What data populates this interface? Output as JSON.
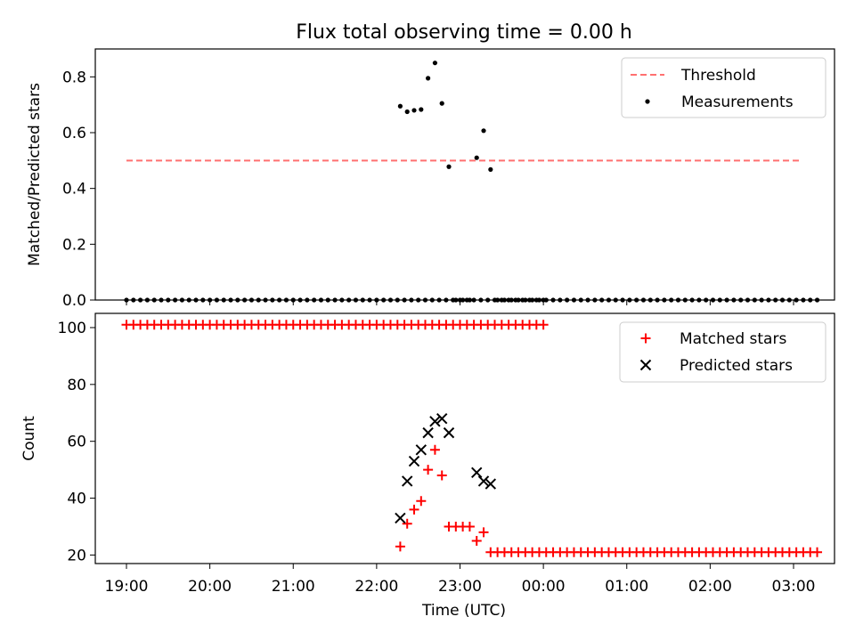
{
  "chart_data": [
    {
      "type": "scatter",
      "title": "Flux total observing time = 0.00 h",
      "ylabel": "Matched/Predicted stars",
      "xlabel": "",
      "ylim": [
        0,
        0.9
      ],
      "yticks": [
        "0.0",
        "0.2",
        "0.4",
        "0.6",
        "0.8"
      ],
      "xlim": [
        "18:40",
        "03:30"
      ],
      "legend_position": "upper right",
      "grid": false,
      "threshold": {
        "name": "Threshold",
        "value": 0.5,
        "x_range": [
          "19:00",
          "03:05"
        ],
        "color": "#ff7070",
        "style": "dashed"
      },
      "series": [
        {
          "name": "Measurements",
          "color": "#000000",
          "marker": "dot",
          "zero_points": {
            "x_start": "19:00",
            "step_min": 5,
            "count": 61,
            "value": 0
          },
          "points": [
            [
              "22:17",
              0.695
            ],
            [
              "22:22",
              0.675
            ],
            [
              "22:27",
              0.68
            ],
            [
              "22:32",
              0.683
            ],
            [
              "22:37",
              0.795
            ],
            [
              "22:42",
              0.85
            ],
            [
              "22:47",
              0.705
            ],
            [
              "22:52",
              0.478
            ],
            [
              "22:57",
              0.0
            ],
            [
              "23:02",
              0.0
            ],
            [
              "23:07",
              0.0
            ],
            [
              "23:12",
              0.51
            ],
            [
              "23:17",
              0.607
            ],
            [
              "23:22",
              0.468
            ]
          ],
          "tail_zero_points": {
            "x_start": "23:27",
            "step_min": 5,
            "count": 47,
            "value": 0
          }
        }
      ]
    },
    {
      "type": "scatter",
      "title": "",
      "ylabel": "Count",
      "xlabel": "Time (UTC)",
      "ylim": [
        17,
        105
      ],
      "yticks": [
        "20",
        "40",
        "60",
        "80",
        "100"
      ],
      "xlim": [
        "18:40",
        "03:30"
      ],
      "xticks": [
        "19:00",
        "20:00",
        "21:00",
        "22:00",
        "23:00",
        "00:00",
        "01:00",
        "02:00",
        "03:00"
      ],
      "legend_position": "upper right",
      "grid": false,
      "series": [
        {
          "name": "Matched stars",
          "color": "#ff0000",
          "marker": "plus",
          "constant_runs": [
            {
              "x_start": "19:00",
              "step_min": 5,
              "count": 61,
              "value": 101
            },
            {
              "x_start": "23:27",
              "step_min": 5,
              "count": 47,
              "value": 21
            }
          ],
          "points": [
            [
              "22:17",
              23
            ],
            [
              "22:22",
              31
            ],
            [
              "22:27",
              36
            ],
            [
              "22:32",
              39
            ],
            [
              "22:37",
              50
            ],
            [
              "22:42",
              57
            ],
            [
              "22:47",
              48
            ],
            [
              "22:52",
              30
            ],
            [
              "22:57",
              30
            ],
            [
              "23:02",
              30
            ],
            [
              "23:07",
              30
            ],
            [
              "23:12",
              25
            ],
            [
              "23:17",
              28
            ],
            [
              "23:22",
              21
            ]
          ]
        },
        {
          "name": "Predicted stars",
          "color": "#000000",
          "marker": "x",
          "points": [
            [
              "22:17",
              33
            ],
            [
              "22:22",
              46
            ],
            [
              "22:27",
              53
            ],
            [
              "22:32",
              57
            ],
            [
              "22:37",
              63
            ],
            [
              "22:42",
              67
            ],
            [
              "22:47",
              68
            ],
            [
              "22:52",
              63
            ],
            [
              "23:12",
              49
            ],
            [
              "23:17",
              46
            ],
            [
              "23:22",
              45
            ]
          ]
        }
      ]
    }
  ]
}
